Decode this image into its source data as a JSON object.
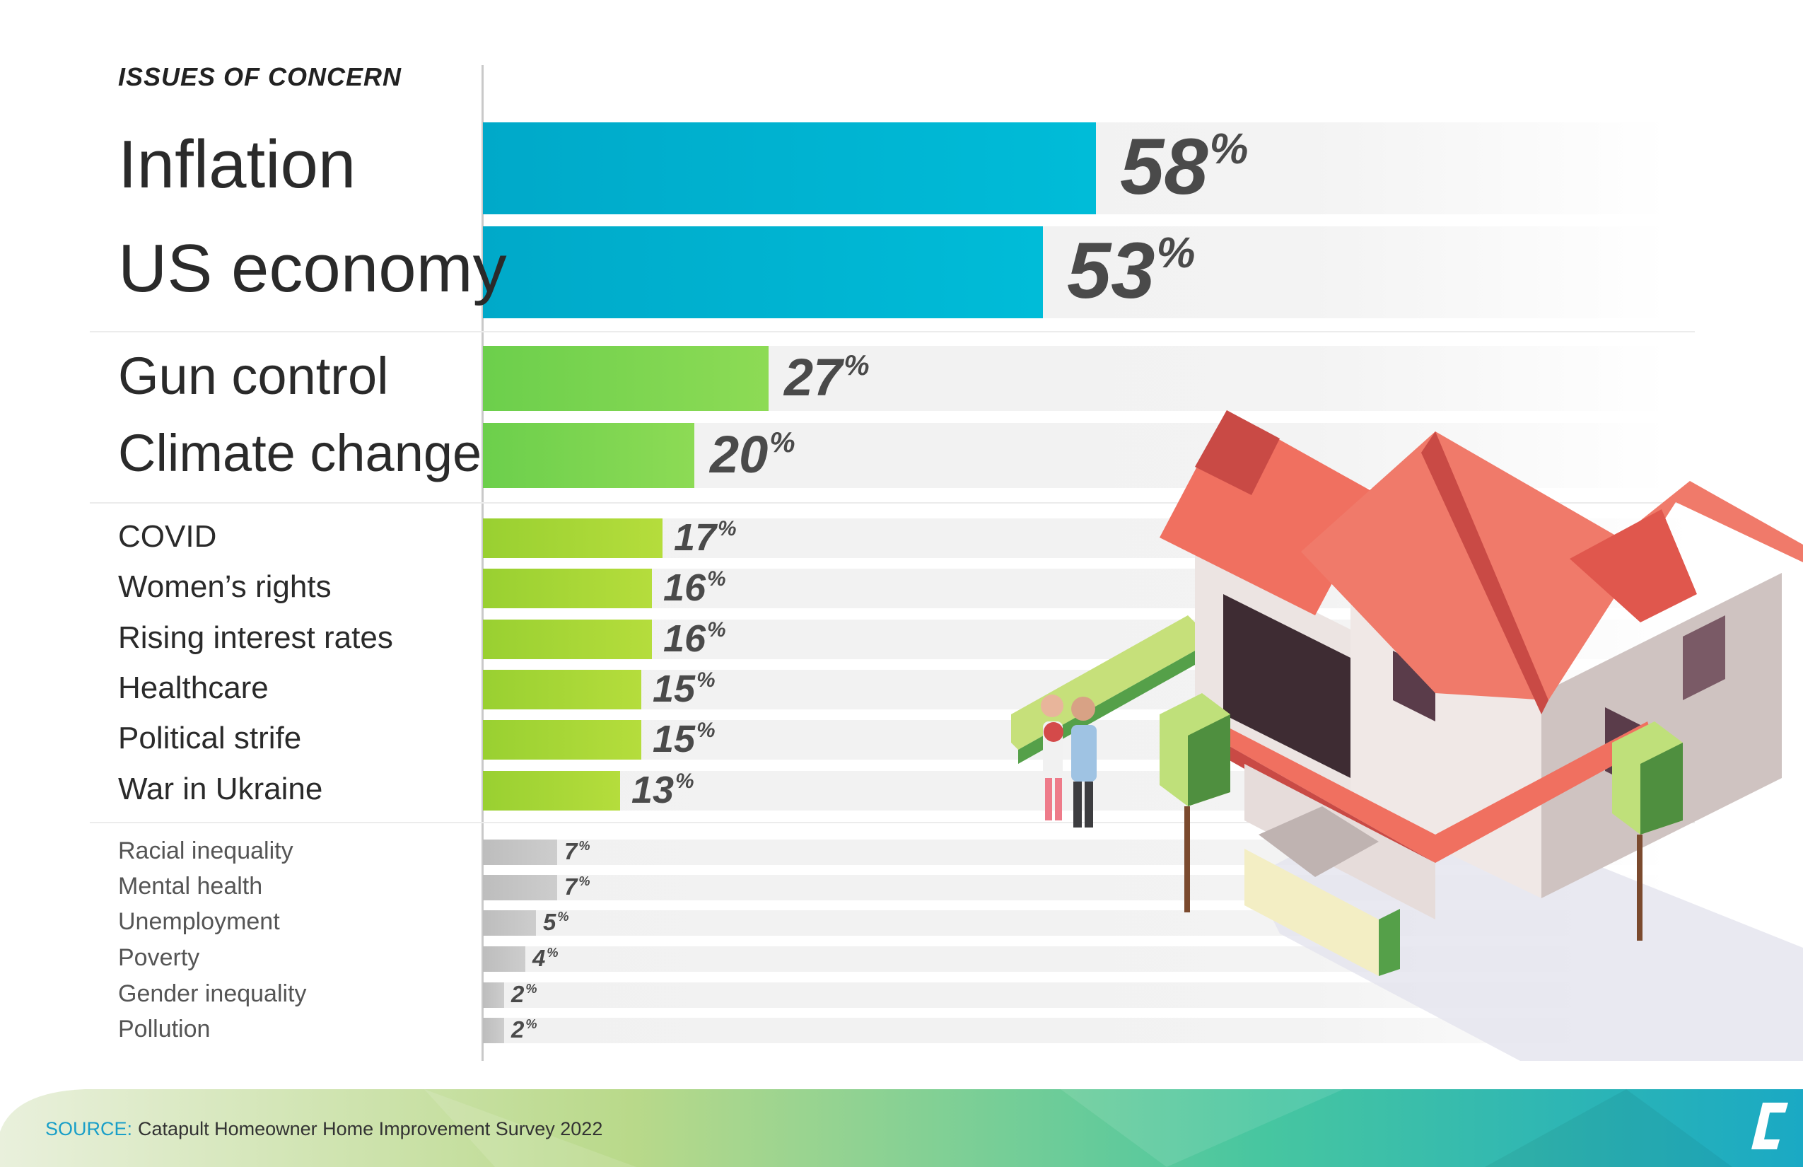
{
  "heading": "ISSUES OF CONCERN",
  "chart_data": {
    "type": "bar",
    "orientation": "horizontal",
    "title": "ISSUES OF CONCERN",
    "unit": "%",
    "xlim": [
      0,
      100
    ],
    "grid": false,
    "tiers": [
      {
        "name": "",
        "color": "#00b5d3",
        "categories": [
          "Inflation",
          "US economy"
        ],
        "values": [
          58,
          53
        ]
      },
      {
        "name": "",
        "color": "#7dd650",
        "categories": [
          "Gun control",
          "Climate change"
        ],
        "values": [
          27,
          20
        ]
      },
      {
        "name": "",
        "color": "#a6d633",
        "categories": [
          "COVID",
          "Women’s rights",
          "Rising interest rates",
          "Healthcare",
          "Political strife",
          "War in Ukraine"
        ],
        "values": [
          17,
          16,
          16,
          15,
          15,
          13
        ]
      },
      {
        "name": "",
        "color": "#c2c2c2",
        "categories": [
          "Racial inequality",
          "Mental health",
          "Unemployment",
          "Poverty",
          "Gender inequality",
          "Pollution"
        ],
        "values": [
          7,
          7,
          5,
          4,
          2,
          2
        ]
      }
    ]
  },
  "percent_sign": "%",
  "source": {
    "label": "SOURCE:",
    "text": "Catapult Homeowner Home Improvement Survey 2022"
  },
  "colors": {
    "teal": "#00b5d3",
    "green": "#7dd650",
    "lime": "#a6d633",
    "gray": "#c2c2c2",
    "source_label": "#1a9fc8"
  },
  "icons": {
    "logo": "catapult-logo-icon",
    "illustration": "house-illustration"
  }
}
